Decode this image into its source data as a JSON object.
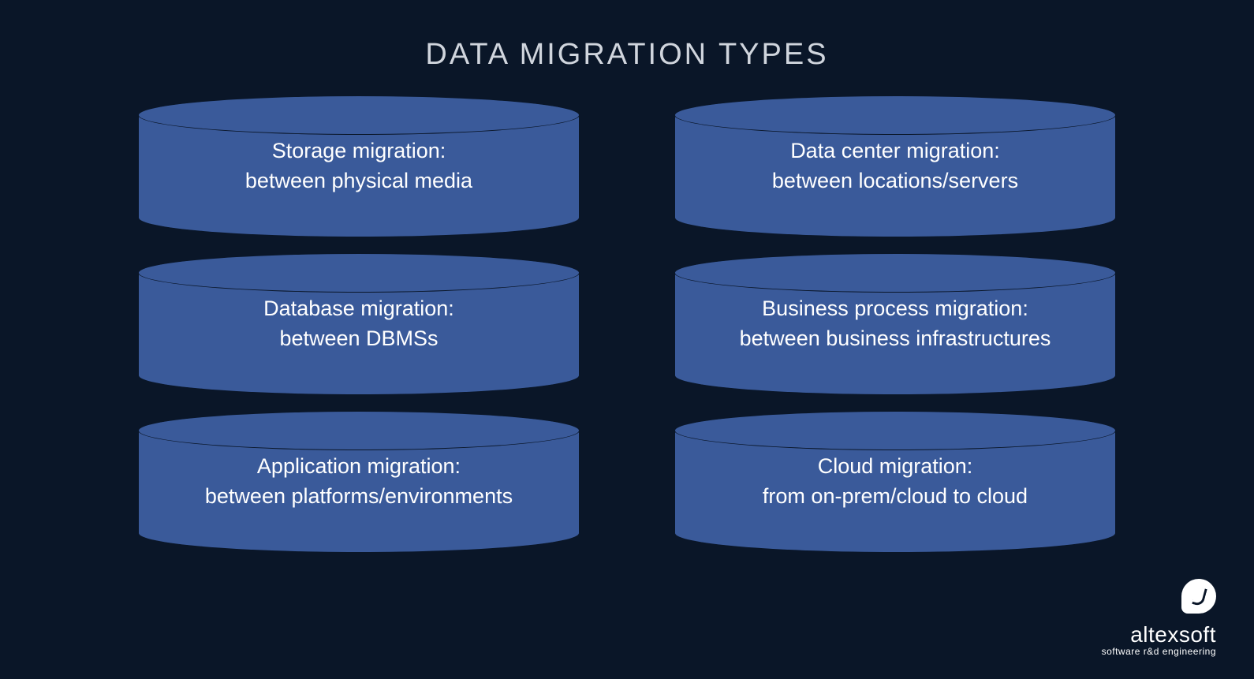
{
  "title": "DATA MIGRATION TYPES",
  "colors": {
    "background": "#0a1628",
    "cylinder_fill": "#3a5a9a",
    "cylinder_stroke": "#0a1628",
    "title_color": "#d0d5dd",
    "text_color": "#ffffff"
  },
  "typography": {
    "title_fontsize": 38,
    "title_letterspacing": 3,
    "body_fontsize": 27,
    "body_weight": 300
  },
  "layout": {
    "columns": 2,
    "rows": 3,
    "cylinder_width": 560,
    "cylinder_height": 155,
    "column_gap": 120,
    "row_gap": 45
  },
  "items": {
    "left": [
      {
        "line1": "Storage migration:",
        "line2": "between physical media"
      },
      {
        "line1": "Database migration:",
        "line2": "between DBMSs"
      },
      {
        "line1": "Application migration:",
        "line2": "between platforms/environments"
      }
    ],
    "right": [
      {
        "line1": "Data center migration:",
        "line2": "between locations/servers"
      },
      {
        "line1": "Business process migration:",
        "line2": "between business infrastructures"
      },
      {
        "line1": "Cloud migration:",
        "line2": "from on-prem/cloud to cloud"
      }
    ]
  },
  "logo": {
    "name": "altexsoft",
    "tagline": "software r&d engineering"
  }
}
